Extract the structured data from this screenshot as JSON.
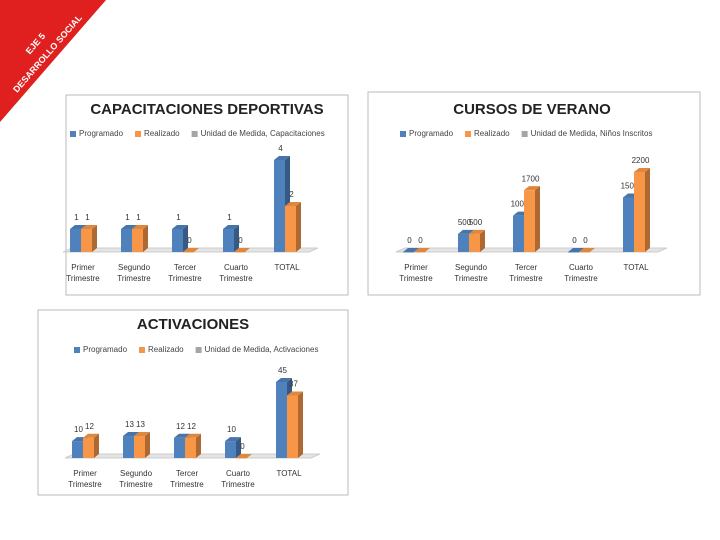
{
  "banner": {
    "line1": "EJE 5",
    "line2": "DESARROLLO SOCIAL"
  },
  "chart_data": [
    {
      "type": "bar3d",
      "title": "CAPACITACIONES DEPORTIVAS",
      "categories": [
        "Primer Trimestre",
        "Segundo Trimestre",
        "Tercer Trimestre",
        "Cuarto Trimestre",
        "TOTAL"
      ],
      "series": [
        {
          "name": "Programado",
          "color": "#4f81bd",
          "values": [
            1,
            1,
            1,
            1,
            4
          ]
        },
        {
          "name": "Realizado",
          "color": "#f79646",
          "values": [
            1,
            1,
            0,
            0,
            2
          ]
        },
        {
          "name": "Unidad de Medida, Capacitaciones",
          "color": "#a5a5a5",
          "values": [
            null,
            null,
            null,
            null,
            null
          ]
        }
      ]
    },
    {
      "type": "bar3d",
      "title": "CURSOS DE VERANO",
      "categories": [
        "Primer Trimestre",
        "Segundo Trimestre",
        "Tercer Trimestre",
        "Cuarto Trimestre",
        "TOTAL"
      ],
      "series": [
        {
          "name": "Programado",
          "color": "#4f81bd",
          "values": [
            0,
            500,
            1000,
            0,
            1500
          ]
        },
        {
          "name": "Realizado",
          "color": "#f79646",
          "values": [
            0,
            500,
            1700,
            0,
            2200
          ]
        },
        {
          "name": "Unidad de Medida, Niños Inscritos",
          "color": "#a5a5a5",
          "values": [
            null,
            null,
            null,
            null,
            null
          ]
        }
      ]
    },
    {
      "type": "bar3d",
      "title": "ACTIVACIONES",
      "categories": [
        "Primer Trimestre",
        "Segundo Trimestre",
        "Tercer Trimestre",
        "Cuarto Trimestre",
        "TOTAL"
      ],
      "series": [
        {
          "name": "Programado",
          "color": "#4f81bd",
          "values": [
            10,
            13,
            12,
            10,
            45
          ]
        },
        {
          "name": "Realizado",
          "color": "#f79646",
          "values": [
            12,
            13,
            12,
            0,
            37
          ]
        },
        {
          "name": "Unidad de Medida, Activaciones",
          "color": "#a5a5a5",
          "values": [
            null,
            null,
            null,
            null,
            null
          ]
        }
      ]
    }
  ]
}
